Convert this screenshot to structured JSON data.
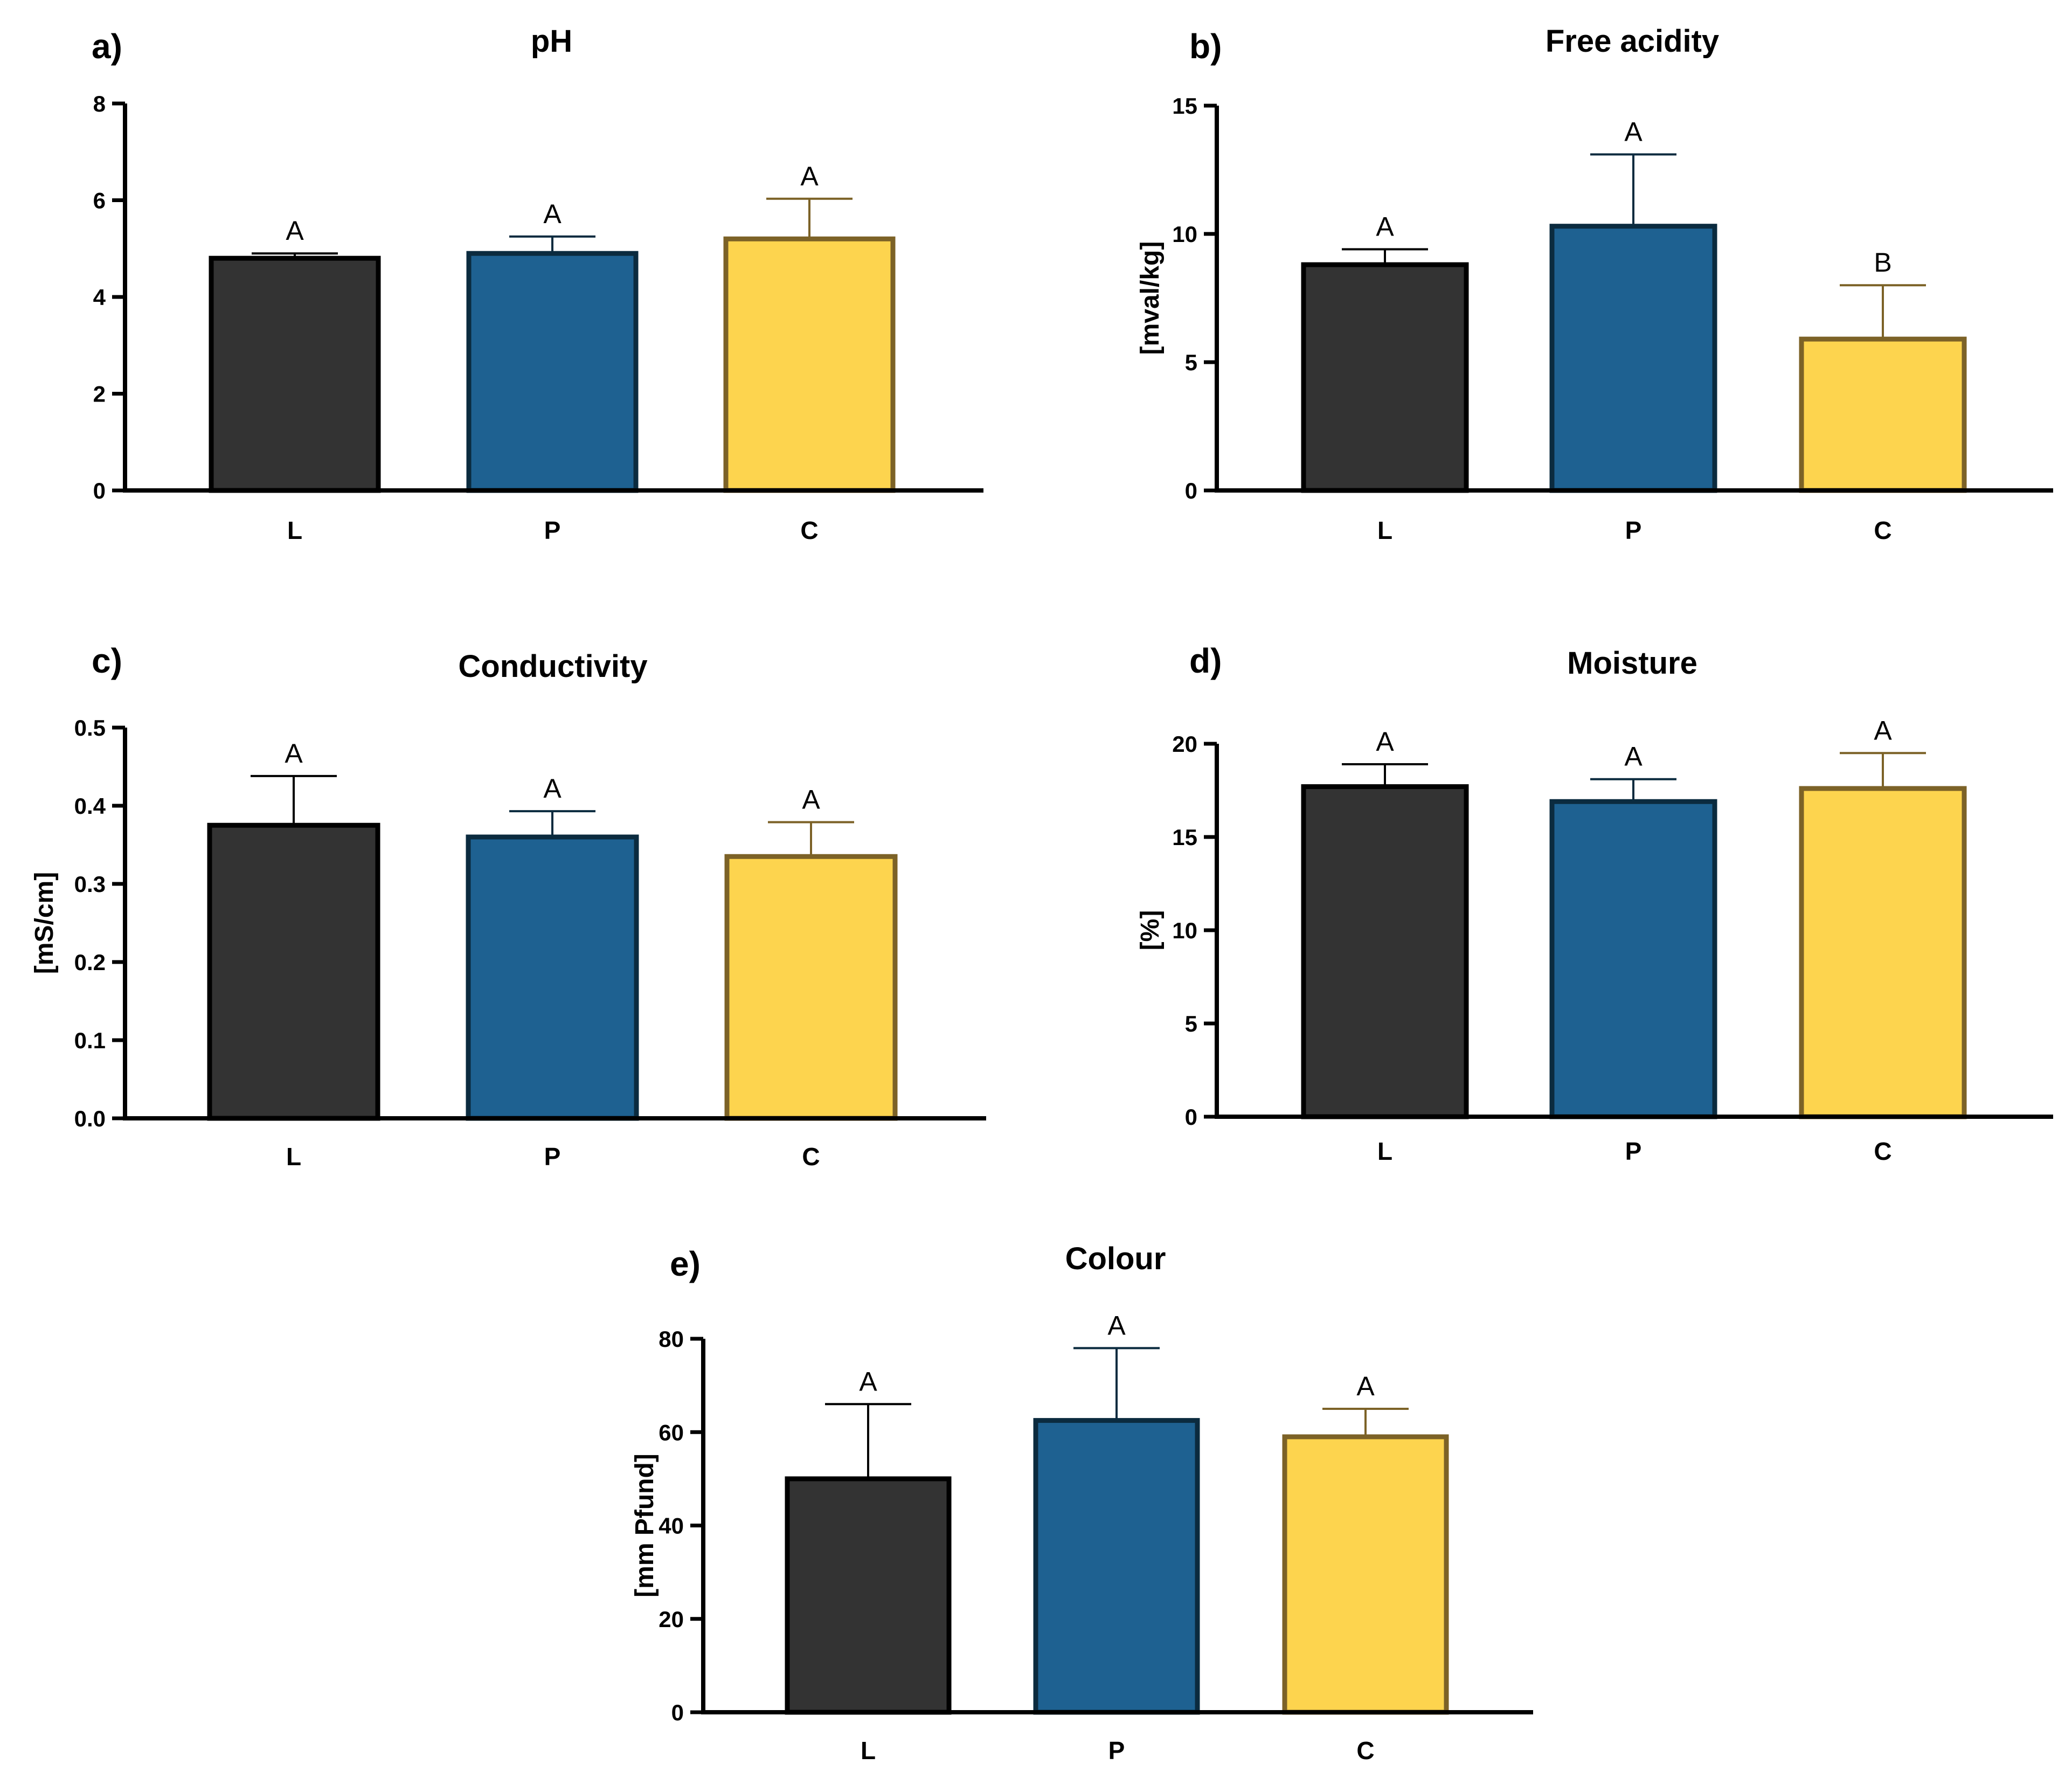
{
  "figure": {
    "colors": {
      "L": {
        "fill": "#333333",
        "stroke": "#000000",
        "whisker": "#000000"
      },
      "P": {
        "fill": "#1e6191",
        "stroke": "#0b2b3f",
        "whisker": "#0b2b3f"
      },
      "C": {
        "fill": "#fdd44e",
        "stroke": "#7c6227",
        "whisker": "#7c6227"
      }
    }
  },
  "chart_data": [
    {
      "panel": "a)",
      "type": "bar",
      "title": "pH",
      "ylabel": "",
      "xlabel": "",
      "categories": [
        "L",
        "P",
        "C"
      ],
      "values": [
        4.8,
        4.9,
        5.2
      ],
      "errors": [
        0.1,
        0.35,
        0.83
      ],
      "significance": [
        "A",
        "A",
        "A"
      ],
      "ylim": [
        0,
        8
      ],
      "yticks": [
        0,
        2,
        4,
        6,
        8
      ],
      "ytick_labels": [
        "0",
        "2",
        "4",
        "6",
        "8"
      ]
    },
    {
      "panel": "b)",
      "type": "bar",
      "title": "Free acidity",
      "ylabel": "[mval/kg]",
      "xlabel": "",
      "categories": [
        "L",
        "P",
        "C"
      ],
      "values": [
        8.8,
        10.3,
        5.9
      ],
      "errors": [
        0.6,
        2.8,
        2.1
      ],
      "significance": [
        "A",
        "A",
        "B"
      ],
      "ylim": [
        0,
        15
      ],
      "yticks": [
        0,
        5,
        10,
        15
      ],
      "ytick_labels": [
        "0",
        "5",
        "10",
        "15"
      ]
    },
    {
      "panel": "c)",
      "type": "bar",
      "title": "Conductivity",
      "ylabel": "[mS/cm]",
      "xlabel": "",
      "categories": [
        "L",
        "P",
        "C"
      ],
      "values": [
        0.375,
        0.36,
        0.335
      ],
      "errors": [
        0.063,
        0.033,
        0.044
      ],
      "significance": [
        "A",
        "A",
        "A"
      ],
      "ylim": [
        0,
        0.5
      ],
      "yticks": [
        0,
        0.1,
        0.2,
        0.3,
        0.4,
        0.5
      ],
      "ytick_labels": [
        "0.0",
        "0.1",
        "0.2",
        "0.3",
        "0.4",
        "0.5"
      ]
    },
    {
      "panel": "d)",
      "type": "bar",
      "title": "Moisture",
      "ylabel": "[%]",
      "xlabel": "",
      "categories": [
        "L",
        "P",
        "C"
      ],
      "values": [
        17.7,
        16.9,
        17.6
      ],
      "errors": [
        1.2,
        1.2,
        1.9
      ],
      "significance": [
        "A",
        "A",
        "A"
      ],
      "ylim": [
        0,
        20
      ],
      "yticks": [
        0,
        5,
        10,
        15,
        20
      ],
      "ytick_labels": [
        "0",
        "5",
        "10",
        "15",
        "20"
      ]
    },
    {
      "panel": "e)",
      "type": "bar",
      "title": "Colour",
      "ylabel": "[mm Pfund]",
      "xlabel": "",
      "categories": [
        "L",
        "P",
        "C"
      ],
      "values": [
        50,
        62.5,
        59
      ],
      "errors": [
        16,
        15.5,
        6
      ],
      "significance": [
        "A",
        "A",
        "A"
      ],
      "ylim": [
        0,
        80
      ],
      "yticks": [
        0,
        20,
        40,
        60,
        80
      ],
      "ytick_labels": [
        "0",
        "20",
        "40",
        "60",
        "80"
      ]
    }
  ]
}
